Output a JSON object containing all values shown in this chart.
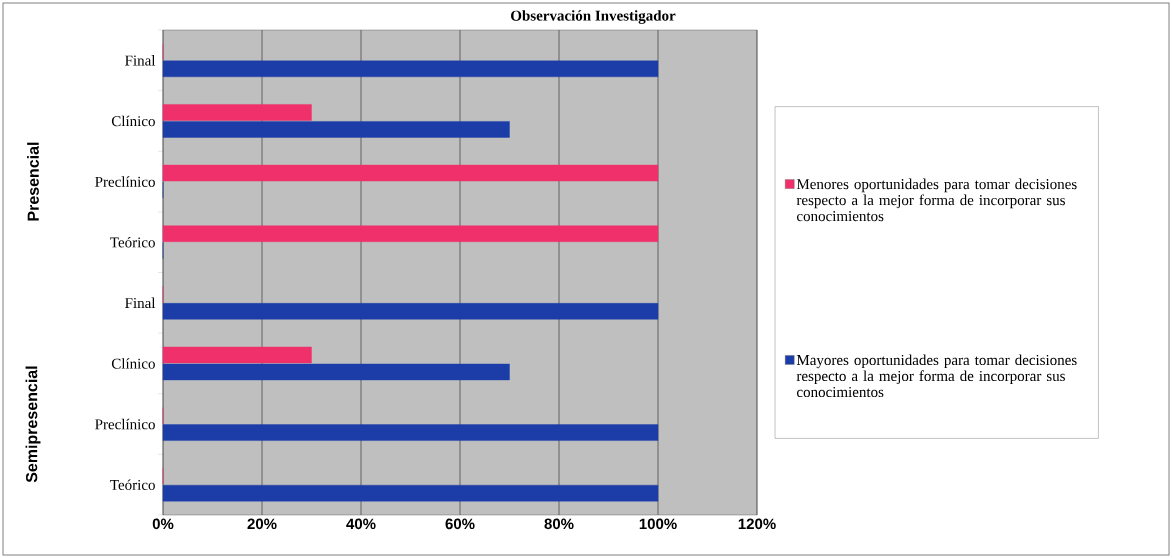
{
  "chart_data": {
    "type": "bar",
    "orientation": "horizontal",
    "title": "Observación  Investigador",
    "categories": [
      "Final",
      "Clínico",
      "Preclínico",
      "Teórico",
      "Final",
      "Clínico",
      "Preclínico",
      "Teórico"
    ],
    "series": [
      {
        "name": "Menores oportunidades para tomar decisiones respecto a la mejor forma de incorporar sus conocimientos",
        "color": "#f0306a",
        "values": [
          0,
          30,
          100,
          100,
          0,
          30,
          0,
          0
        ]
      },
      {
        "name": "Mayores oportunidades para tomar decisiones respecto a la mejor forma de incorporar sus conocimientos",
        "color": "#1c3ca8",
        "values": [
          100,
          70,
          0,
          0,
          100,
          70,
          100,
          100
        ]
      }
    ],
    "annotations": [
      "Presencial",
      "Semipresencial"
    ],
    "xlim": [
      0,
      120
    ],
    "xticks": [
      {
        "value": 0,
        "label": "0%"
      },
      {
        "value": 20,
        "label": "20%"
      },
      {
        "value": 40,
        "label": "40%"
      },
      {
        "value": 60,
        "label": "60%"
      },
      {
        "value": 80,
        "label": "80%"
      },
      {
        "value": 100,
        "label": "100%"
      },
      {
        "value": 120,
        "label": "120%"
      }
    ],
    "grid": "x",
    "legend": "right"
  }
}
